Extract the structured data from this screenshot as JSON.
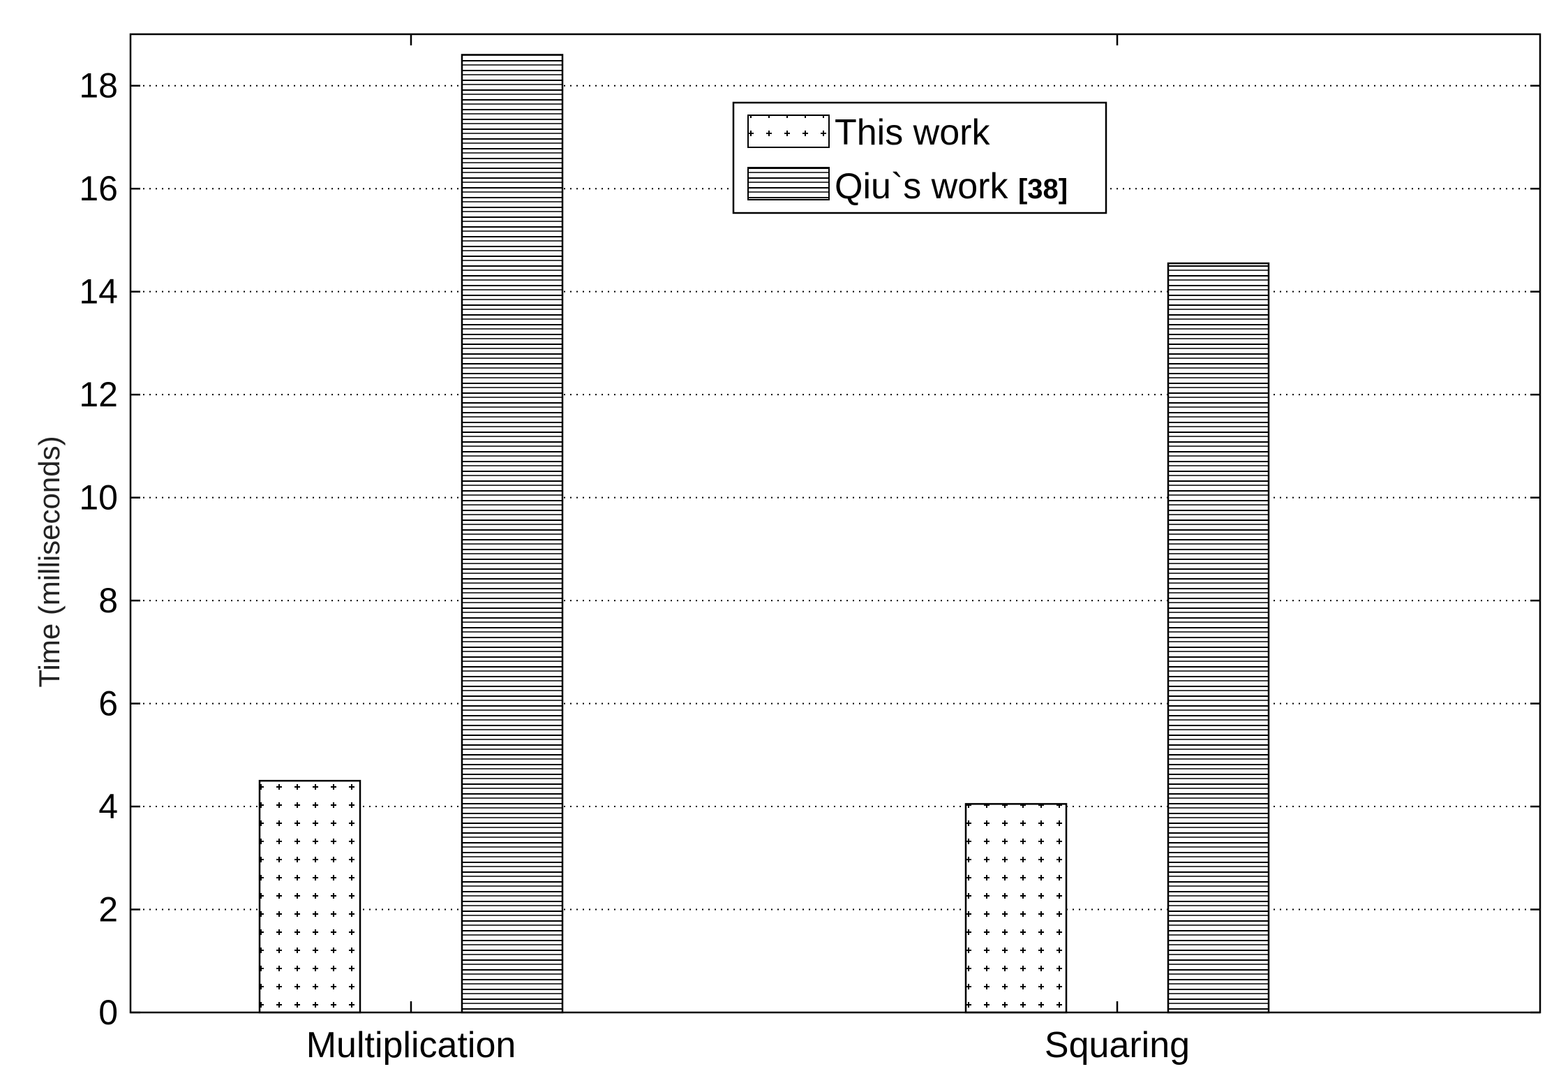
{
  "chart_data": {
    "type": "bar",
    "title": "",
    "xlabel": "",
    "ylabel": "Time (milliseconds)",
    "categories": [
      "Multiplication",
      "Squaring"
    ],
    "series": [
      {
        "name": "This work",
        "values": [
          4.5,
          4.05
        ],
        "pattern": "plus-dots"
      },
      {
        "name": "Qiu`s work",
        "name_ref": "[38]",
        "values": [
          18.6,
          14.55
        ],
        "pattern": "horizontal-lines"
      }
    ],
    "ylim": [
      0,
      19
    ],
    "yticks": [
      0,
      2,
      4,
      6,
      8,
      10,
      12,
      14,
      16,
      18
    ],
    "grid": "horizontal-dotted",
    "legend_position": "top-center",
    "colors": {
      "axis": "#000000",
      "grid": "#000000",
      "bar_fill": "#ffffff",
      "bar_edge": "#000000",
      "pattern": "#000000"
    }
  }
}
